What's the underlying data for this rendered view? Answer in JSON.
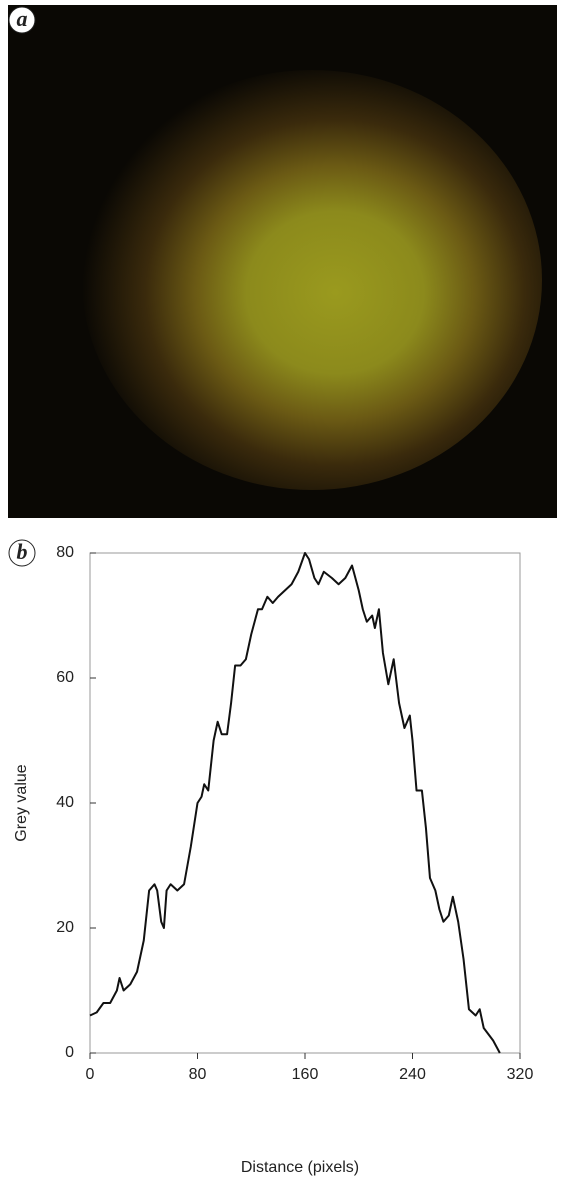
{
  "panel_a": {
    "label": "a"
  },
  "chart_data": {
    "type": "line",
    "panel_label": "b",
    "xlabel": "Distance (pixels)",
    "ylabel": "Grey value",
    "x": [
      0,
      5,
      10,
      15,
      20,
      22,
      25,
      30,
      35,
      40,
      44,
      48,
      50,
      53,
      55,
      57,
      60,
      65,
      70,
      75,
      80,
      83,
      85,
      88,
      92,
      95,
      98,
      102,
      105,
      108,
      112,
      116,
      120,
      125,
      128,
      132,
      136,
      140,
      145,
      150,
      155,
      160,
      163,
      167,
      170,
      174,
      180,
      185,
      190,
      195,
      200,
      203,
      206,
      210,
      212,
      215,
      218,
      222,
      226,
      230,
      234,
      238,
      240,
      243,
      247,
      250,
      253,
      257,
      260,
      263,
      267,
      270,
      274,
      278,
      282,
      287,
      290,
      293,
      300,
      305
    ],
    "series": [
      {
        "name": "Grey value",
        "color": "#111111",
        "values": [
          6,
          6.5,
          8,
          8,
          10,
          12,
          10,
          11,
          13,
          18,
          26,
          27,
          26,
          21,
          20,
          26,
          27,
          26,
          27,
          33,
          40,
          41,
          43,
          42,
          50,
          53,
          51,
          51,
          56,
          62,
          62,
          63,
          67,
          71,
          71,
          73,
          72,
          73,
          74,
          75,
          77,
          80,
          79,
          76,
          75,
          77,
          76,
          75,
          76,
          78,
          74,
          71,
          69,
          70,
          68,
          71,
          64,
          59,
          63,
          56,
          52,
          54,
          50,
          42,
          42,
          36,
          28,
          26,
          23,
          21,
          22,
          25,
          21,
          15,
          7,
          6,
          7,
          4,
          2,
          0
        ]
      }
    ],
    "xlim": [
      0,
      320
    ],
    "ylim": [
      0,
      80
    ],
    "xticks": [
      0,
      80,
      160,
      240,
      320
    ],
    "yticks": [
      0,
      20,
      40,
      60,
      80
    ]
  }
}
